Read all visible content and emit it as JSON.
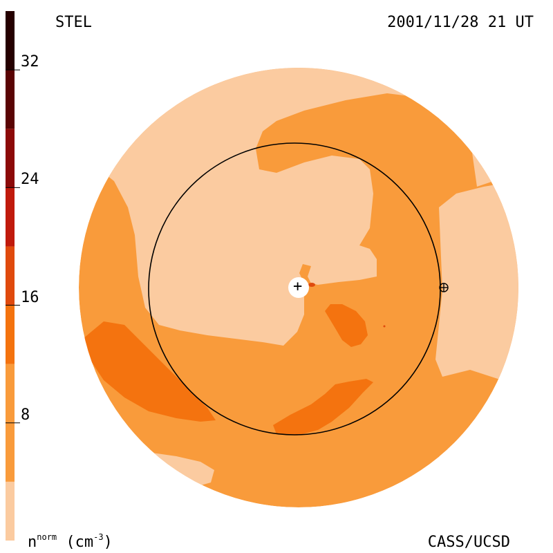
{
  "header": {
    "left_label": "STEL",
    "right_label": "2001/11/28 21 UT"
  },
  "footer": {
    "credit": "CASS/UCSD",
    "unit": {
      "base": "n",
      "superscript": "norm",
      "open": "(cm",
      "exponent": "-3",
      "close": ")"
    }
  },
  "colorbar": {
    "ticks": [
      {
        "value": 32,
        "label": "32"
      },
      {
        "value": 24,
        "label": "24"
      },
      {
        "value": 16,
        "label": "16"
      },
      {
        "value": 8,
        "label": "8"
      }
    ],
    "bands": [
      {
        "from": 0,
        "to": 4,
        "color": "#fbcba0"
      },
      {
        "from": 4,
        "to": 12,
        "color": "#f99b3b"
      },
      {
        "from": 12,
        "to": 16,
        "color": "#f4730f"
      },
      {
        "from": 16,
        "to": 20,
        "color": "#e04a0d"
      },
      {
        "from": 20,
        "to": 24,
        "color": "#c01a0c"
      },
      {
        "from": 24,
        "to": 28,
        "color": "#8c0a08"
      },
      {
        "from": 28,
        "to": 32,
        "color": "#5a0404"
      },
      {
        "from": 32,
        "to": 36,
        "color": "#250000"
      }
    ]
  },
  "markers": {
    "center_symbol": "+",
    "earth_symbol": "⊕"
  }
}
